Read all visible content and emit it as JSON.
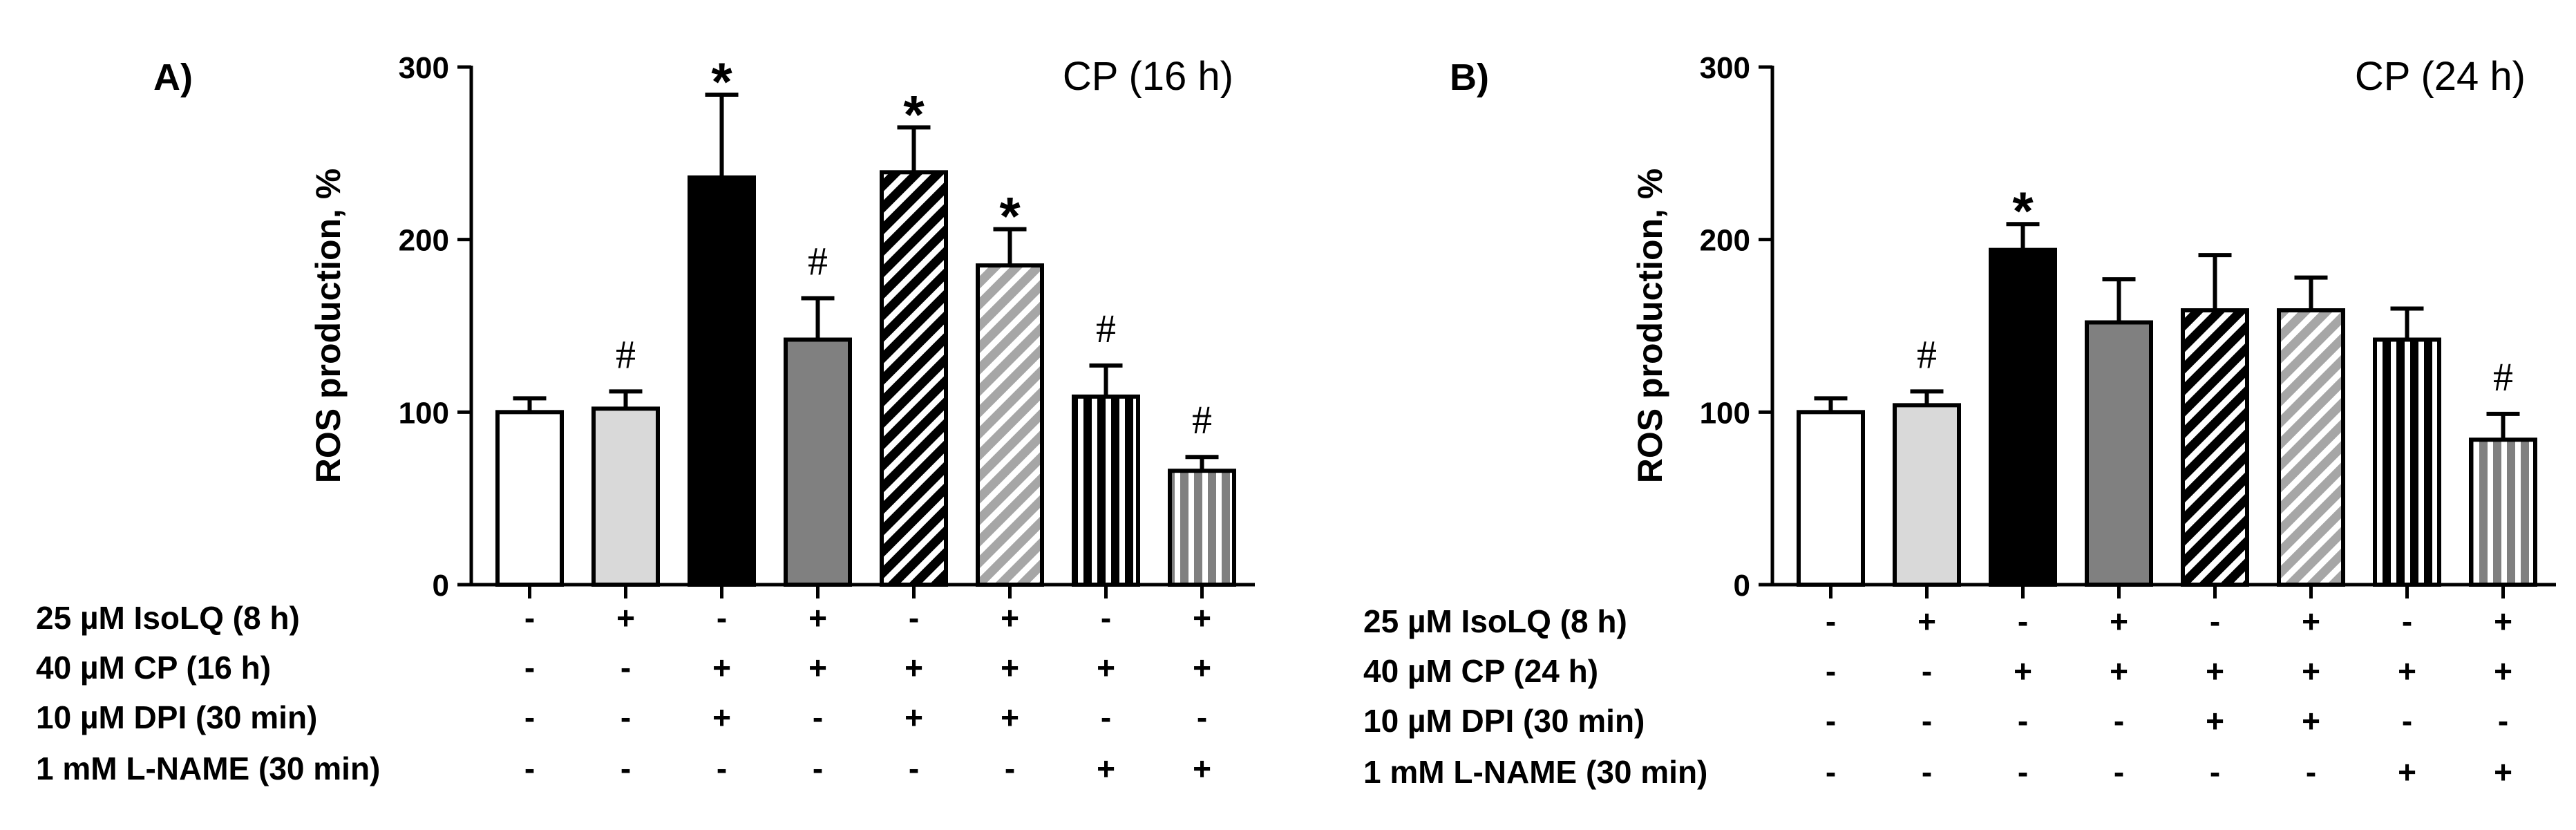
{
  "chart_data": [
    {
      "type": "bar",
      "panel_label": "A)",
      "title": "CP (16 h)",
      "ylabel": "ROS production, %",
      "ylim": [
        0,
        300
      ],
      "yticks": [
        "0",
        "100",
        "200",
        "300"
      ],
      "bars": [
        {
          "value": 100,
          "error": 8,
          "fill": "#ffffff",
          "pattern": "none",
          "annotation": ""
        },
        {
          "value": 102,
          "error": 10,
          "fill": "#d9d9d9",
          "pattern": "none",
          "annotation": "#"
        },
        {
          "value": 236,
          "error": 48,
          "fill": "#000000",
          "pattern": "none",
          "annotation": "*"
        },
        {
          "value": 142,
          "error": 24,
          "fill": "#808080",
          "pattern": "none",
          "annotation": "#"
        },
        {
          "value": 239,
          "error": 26,
          "fill": "#000000",
          "pattern": "diag-white",
          "annotation": "*"
        },
        {
          "value": 185,
          "error": 21,
          "fill": "#a6a6a6",
          "pattern": "diag-white",
          "annotation": "*"
        },
        {
          "value": 109,
          "error": 18,
          "fill": "#000000",
          "pattern": "vert-white",
          "annotation": "#"
        },
        {
          "value": 66,
          "error": 8,
          "fill": "#808080",
          "pattern": "vert-white",
          "annotation": "#"
        }
      ],
      "treatment_rows": [
        {
          "label": "25 µM IsoLQ (8 h)",
          "signs": [
            "-",
            "+",
            "-",
            "+",
            "-",
            "+",
            "-",
            "+"
          ]
        },
        {
          "label": "40 µM CP (16 h)",
          "signs": [
            "-",
            "-",
            "+",
            "+",
            "+",
            "+",
            "+",
            "+"
          ]
        },
        {
          "label": "10 µM DPI (30 min)",
          "signs": [
            "-",
            "-",
            "+",
            "-",
            "+",
            "+",
            "-",
            "-"
          ]
        },
        {
          "label": "1 mM L-NAME (30 min)",
          "signs": [
            "-",
            "-",
            "-",
            "-",
            "-",
            "-",
            "+",
            "+"
          ]
        }
      ]
    },
    {
      "type": "bar",
      "panel_label": "B)",
      "title": "CP (24 h)",
      "ylabel": "ROS production, %",
      "ylim": [
        0,
        300
      ],
      "yticks": [
        "0",
        "100",
        "200",
        "300"
      ],
      "bars": [
        {
          "value": 100,
          "error": 8,
          "fill": "#ffffff",
          "pattern": "none",
          "annotation": ""
        },
        {
          "value": 104,
          "error": 8,
          "fill": "#d9d9d9",
          "pattern": "none",
          "annotation": "#"
        },
        {
          "value": 194,
          "error": 15,
          "fill": "#000000",
          "pattern": "none",
          "annotation": "*"
        },
        {
          "value": 152,
          "error": 25,
          "fill": "#808080",
          "pattern": "none",
          "annotation": ""
        },
        {
          "value": 159,
          "error": 32,
          "fill": "#000000",
          "pattern": "diag-white",
          "annotation": ""
        },
        {
          "value": 159,
          "error": 19,
          "fill": "#a6a6a6",
          "pattern": "diag-white",
          "annotation": ""
        },
        {
          "value": 142,
          "error": 18,
          "fill": "#000000",
          "pattern": "vert-white",
          "annotation": ""
        },
        {
          "value": 84,
          "error": 15,
          "fill": "#808080",
          "pattern": "vert-white",
          "annotation": "#"
        }
      ],
      "treatment_rows": [
        {
          "label": "25 µM IsoLQ (8 h)",
          "signs": [
            "-",
            "+",
            "-",
            "+",
            "-",
            "+",
            "-",
            "+"
          ]
        },
        {
          "label": "40 µM CP (24 h)",
          "signs": [
            "-",
            "-",
            "+",
            "+",
            "+",
            "+",
            "+",
            "+"
          ]
        },
        {
          "label": "10 µM DPI (30 min)",
          "signs": [
            "-",
            "-",
            "-",
            "-",
            "+",
            "+",
            "-",
            "-"
          ]
        },
        {
          "label": "1 mM L-NAME (30 min)",
          "signs": [
            "-",
            "-",
            "-",
            "-",
            "-",
            "-",
            "+",
            "+"
          ]
        }
      ]
    }
  ]
}
